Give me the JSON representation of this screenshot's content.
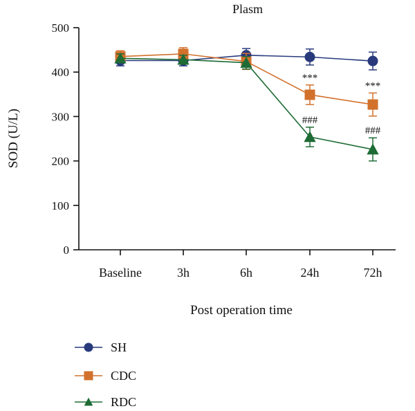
{
  "chart_data": {
    "type": "line",
    "title": "Plasm",
    "xlabel": "Post operation time",
    "ylabel": "SOD (U/L)",
    "categories": [
      "Baseline",
      "3h",
      "6h",
      "24h",
      "72h"
    ],
    "ylim": [
      0,
      500
    ],
    "yticks": [
      0,
      100,
      200,
      300,
      400,
      500
    ],
    "grid": false,
    "legend_position": "bottom-left",
    "series": [
      {
        "name": "SH",
        "color": "#283a7c",
        "marker": "circle",
        "values": [
          426,
          426,
          438,
          434,
          425
        ],
        "errors": [
          12,
          12,
          15,
          18,
          20
        ],
        "annotations": [
          "",
          "",
          "",
          "",
          ""
        ]
      },
      {
        "name": "CDC",
        "color": "#d2712c",
        "marker": "square",
        "values": [
          435,
          441,
          424,
          349,
          327
        ],
        "errors": [
          13,
          14,
          18,
          22,
          26
        ],
        "annotations": [
          "",
          "",
          "",
          "***",
          "***"
        ]
      },
      {
        "name": "RDC",
        "color": "#1e6b35",
        "marker": "triangle",
        "values": [
          431,
          428,
          421,
          254,
          226
        ],
        "errors": [
          10,
          10,
          14,
          22,
          26
        ],
        "annotations": [
          "",
          "",
          "",
          "###",
          "###"
        ]
      }
    ]
  }
}
